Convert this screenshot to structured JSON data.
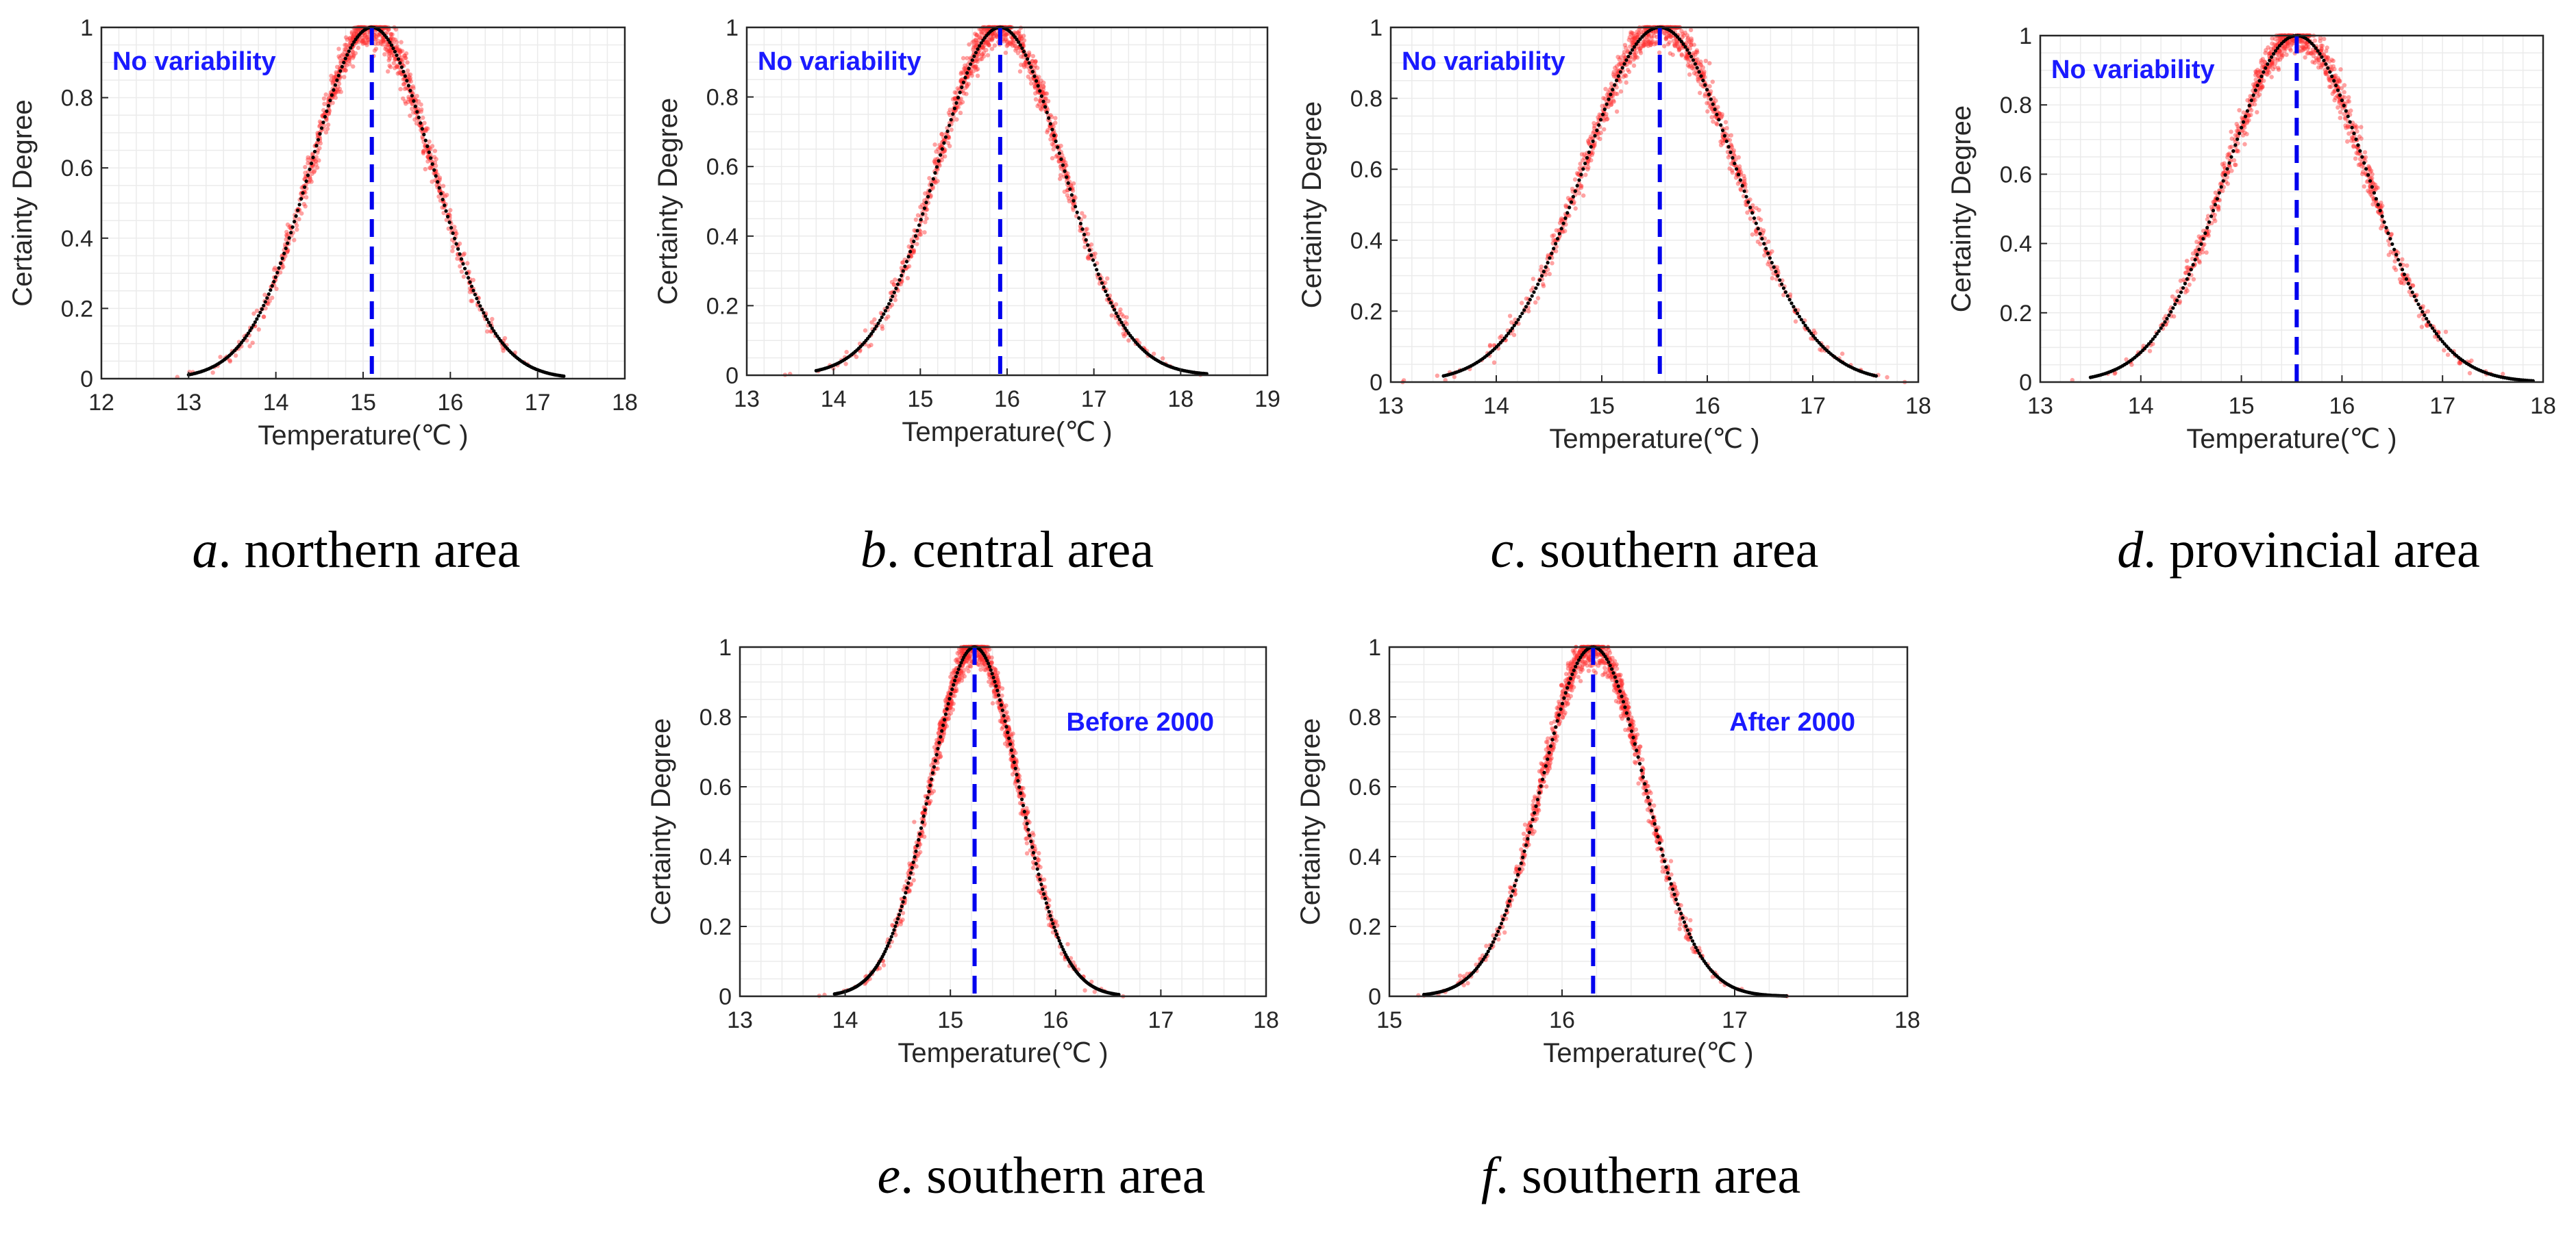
{
  "colors": {
    "scatter": "#ff3030",
    "curve": "#000000",
    "mean_line": "#0000ee",
    "annotation": "#1a1aff"
  },
  "chart_data": [
    {
      "type": "scatter",
      "id": "a",
      "caption_letter": "a",
      "caption_text": ". northern area",
      "annotation": "No variability",
      "annotation_pos": "top-left",
      "xlabel": "Temperature(℃ )",
      "ylabel": "Certainty Degree",
      "xlim": [
        12,
        18
      ],
      "ylim": [
        0,
        1
      ],
      "xticks": [
        12,
        13,
        14,
        15,
        16,
        17,
        18
      ],
      "yticks": [
        0,
        0.2,
        0.4,
        0.6,
        0.8,
        1
      ],
      "ytick_labels": [
        "0",
        "0.2",
        "0.4",
        "0.6",
        "0.8",
        "1"
      ],
      "mean": 15.1,
      "sigma": 0.7,
      "curve_range": [
        13.0,
        17.3
      ],
      "n_points": 900
    },
    {
      "type": "scatter",
      "id": "b",
      "caption_letter": "b",
      "caption_text": ". central area",
      "annotation": "No variability",
      "annotation_pos": "top-left",
      "xlabel": "Temperature(℃ )",
      "ylabel": "Certainty Degree",
      "xlim": [
        13,
        19
      ],
      "ylim": [
        0,
        1
      ],
      "xticks": [
        13,
        14,
        15,
        16,
        17,
        18,
        19
      ],
      "yticks": [
        0,
        0.2,
        0.4,
        0.6,
        0.8,
        1
      ],
      "ytick_labels": [
        "0",
        "0.2",
        "0.4",
        "0.6",
        "0.8",
        "1"
      ],
      "mean": 15.92,
      "sigma": 0.72,
      "curve_range": [
        13.8,
        18.3
      ],
      "n_points": 900
    },
    {
      "type": "scatter",
      "id": "c",
      "caption_letter": "c",
      "caption_text": ". southern area",
      "annotation": "No variability",
      "annotation_pos": "top-left",
      "xlabel": "Temperature(℃ )",
      "ylabel": "Certainty Degree",
      "xlim": [
        13,
        18
      ],
      "ylim": [
        0,
        1
      ],
      "xticks": [
        13,
        14,
        15,
        16,
        17,
        18
      ],
      "yticks": [
        0,
        0.2,
        0.4,
        0.6,
        0.8,
        1
      ],
      "ytick_labels": [
        "0",
        "0.2",
        "0.4",
        "0.6",
        "0.8",
        "1"
      ],
      "mean": 15.55,
      "sigma": 0.72,
      "curve_range": [
        13.5,
        17.6
      ],
      "n_points": 900
    },
    {
      "type": "scatter",
      "id": "d",
      "caption_letter": "d",
      "caption_text": ". provincial area",
      "annotation": "No variability",
      "annotation_pos": "top-left",
      "xlabel": "Temperature(℃ )",
      "ylabel": "Certainty Degree",
      "xlim": [
        13,
        18
      ],
      "ylim": [
        0,
        1
      ],
      "xticks": [
        13,
        14,
        15,
        16,
        17,
        18
      ],
      "yticks": [
        0,
        0.2,
        0.4,
        0.6,
        0.8,
        1
      ],
      "ytick_labels": [
        "0",
        "0.2",
        "0.4",
        "0.6",
        "0.8",
        "1"
      ],
      "mean": 15.55,
      "sigma": 0.7,
      "curve_range": [
        13.5,
        17.9
      ],
      "n_points": 900
    },
    {
      "type": "scatter",
      "id": "e",
      "caption_letter": "e",
      "caption_text": ". southern area",
      "annotation": "Before 2000",
      "annotation_pos": "top-right",
      "xlabel": "Temperature(℃ )",
      "ylabel": "Certainty Degree",
      "xlim": [
        13,
        18
      ],
      "ylim": [
        0,
        1
      ],
      "xticks": [
        13,
        14,
        15,
        16,
        17,
        18
      ],
      "yticks": [
        0,
        0.2,
        0.4,
        0.6,
        0.8,
        1
      ],
      "ytick_labels": [
        "0",
        "0.2",
        "0.4",
        "0.6",
        "0.8",
        "1"
      ],
      "mean": 15.23,
      "sigma": 0.42,
      "curve_range": [
        13.9,
        16.6
      ],
      "n_points": 1000
    },
    {
      "type": "scatter",
      "id": "f",
      "caption_letter": "f",
      "caption_text": ". southern area",
      "annotation": "After 2000",
      "annotation_pos": "top-right",
      "xlabel": "Temperature(℃ )",
      "ylabel": "Certainty Degree",
      "xlim": [
        15,
        18
      ],
      "ylim": [
        0,
        1
      ],
      "xticks": [
        15,
        16,
        17,
        18
      ],
      "yticks": [
        0,
        0.2,
        0.4,
        0.6,
        0.8,
        1
      ],
      "ytick_labels": [
        "0",
        "0.2",
        "0.4",
        "0.6",
        "0.8",
        "1"
      ],
      "mean": 16.18,
      "sigma": 0.3,
      "curve_range": [
        15.2,
        17.3
      ],
      "n_points": 1000
    }
  ]
}
